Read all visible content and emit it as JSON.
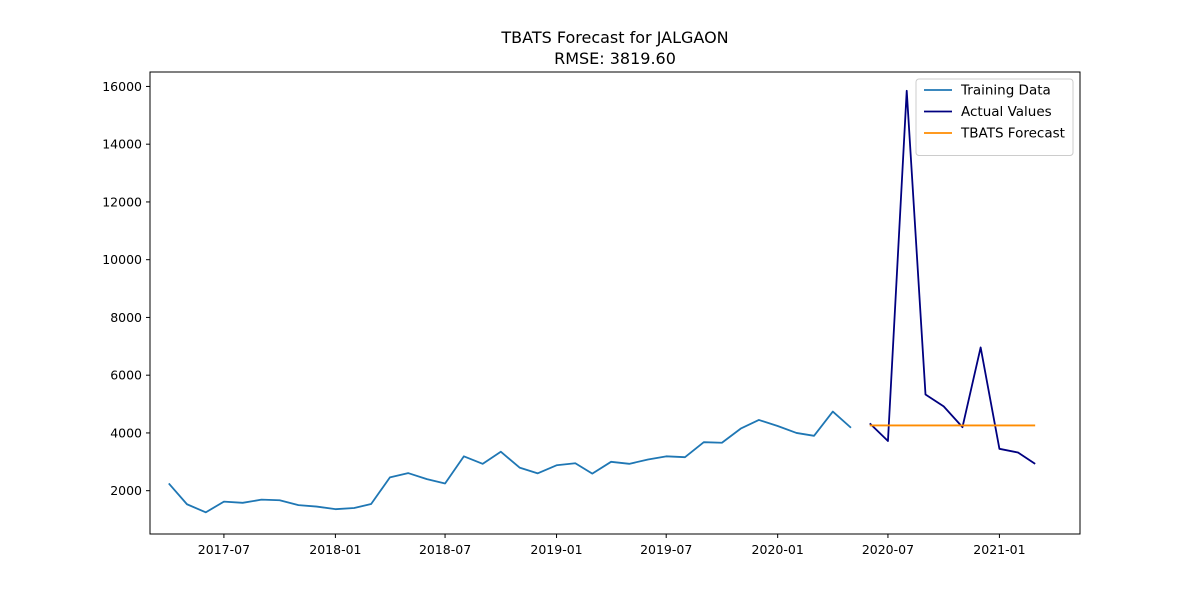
{
  "chart_data": {
    "type": "line",
    "title": "TBATS Forecast for JALGAON",
    "subtitle": "RMSE: 3819.60",
    "xlabel": "",
    "ylabel": "",
    "xlim": [
      "2017-03-01",
      "2021-05-14"
    ],
    "ylim": [
      500,
      16500
    ],
    "x_ticks": [
      "2017-07-01",
      "2018-01-01",
      "2018-07-01",
      "2019-01-01",
      "2019-07-01",
      "2020-01-01",
      "2020-07-01",
      "2021-01-01"
    ],
    "x_tick_labels": [
      "2017-07",
      "2018-01",
      "2018-07",
      "2019-01",
      "2019-07",
      "2020-01",
      "2020-07",
      "2021-01"
    ],
    "y_ticks": [
      2000,
      4000,
      6000,
      8000,
      10000,
      12000,
      14000,
      16000
    ],
    "y_tick_labels": [
      "2000",
      "4000",
      "6000",
      "8000",
      "10000",
      "12000",
      "14000",
      "16000"
    ],
    "legend_position": "top-right",
    "grid": false,
    "series": [
      {
        "name": "Training Data",
        "color": "#1f77b4",
        "x": [
          "2017-04-01",
          "2017-05-01",
          "2017-06-01",
          "2017-07-01",
          "2017-08-01",
          "2017-09-01",
          "2017-10-01",
          "2017-11-01",
          "2017-12-01",
          "2018-01-01",
          "2018-02-01",
          "2018-03-01",
          "2018-04-01",
          "2018-05-01",
          "2018-06-01",
          "2018-07-01",
          "2018-08-01",
          "2018-09-01",
          "2018-10-01",
          "2018-11-01",
          "2018-12-01",
          "2019-01-01",
          "2019-02-01",
          "2019-03-01",
          "2019-04-01",
          "2019-05-01",
          "2019-06-01",
          "2019-07-01",
          "2019-08-01",
          "2019-09-01",
          "2019-10-01",
          "2019-11-01",
          "2019-12-01",
          "2020-01-01",
          "2020-02-01",
          "2020-03-01",
          "2020-04-01",
          "2020-05-01"
        ],
        "values": [
          2250,
          1530,
          1250,
          1620,
          1580,
          1690,
          1670,
          1500,
          1450,
          1360,
          1400,
          1540,
          2460,
          2610,
          2400,
          2250,
          3190,
          2930,
          3350,
          2800,
          2600,
          2880,
          2950,
          2590,
          3000,
          2930,
          3080,
          3190,
          3160,
          3680,
          3660,
          4150,
          4450,
          4240,
          4000,
          3900,
          4740,
          4180
        ]
      },
      {
        "name": "Actual Values",
        "color": "#000080",
        "x": [
          "2020-06-01",
          "2020-07-01",
          "2020-08-01",
          "2020-09-01",
          "2020-10-01",
          "2020-11-01",
          "2020-12-01",
          "2021-01-01",
          "2021-02-01",
          "2021-03-01"
        ],
        "values": [
          4330,
          3720,
          15850,
          5330,
          4920,
          4200,
          6960,
          3450,
          3320,
          2930
        ]
      },
      {
        "name": "TBATS Forecast",
        "color": "#ff8c00",
        "x": [
          "2020-06-01",
          "2020-07-01",
          "2020-08-01",
          "2020-09-01",
          "2020-10-01",
          "2020-11-01",
          "2020-12-01",
          "2021-01-01",
          "2021-02-01",
          "2021-03-01"
        ],
        "values": [
          4260,
          4260,
          4260,
          4260,
          4260,
          4260,
          4260,
          4260,
          4260,
          4260
        ]
      }
    ]
  }
}
